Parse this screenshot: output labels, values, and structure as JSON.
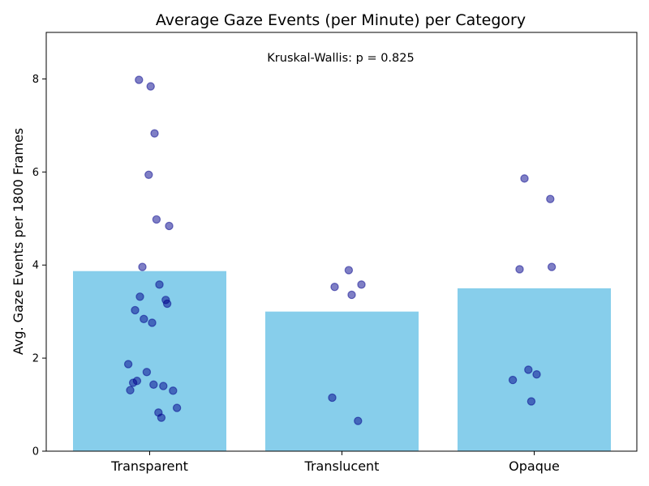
{
  "chart_data": {
    "type": "bar",
    "title": "Average Gaze Events (per Minute) per Category",
    "xlabel": "",
    "ylabel": "Avg. Gaze Events per 1800 Frames",
    "annotation": "Kruskal-Wallis: p = 0.825",
    "categories": [
      "Transparent",
      "Translucent",
      "Opaque"
    ],
    "values": [
      3.87,
      3.0,
      3.5
    ],
    "ylim": [
      0,
      9
    ],
    "yticks": [
      0,
      2,
      4,
      6,
      8
    ],
    "grid": false,
    "bar_color": "#87ceeb",
    "point_color": "#00008b",
    "points": [
      [
        7.98,
        7.84,
        6.83,
        5.94,
        4.98,
        4.84,
        3.96,
        3.58,
        3.32,
        3.25,
        3.17,
        3.03,
        2.84,
        2.76,
        1.87,
        1.7,
        1.51,
        1.47,
        1.43,
        1.4,
        1.31,
        1.3,
        0.93,
        0.83,
        0.72
      ],
      [
        3.89,
        3.58,
        3.53,
        3.36,
        1.15,
        0.65
      ],
      [
        5.86,
        5.42,
        3.96,
        3.91,
        1.75,
        1.65,
        1.53,
        1.07
      ]
    ]
  }
}
